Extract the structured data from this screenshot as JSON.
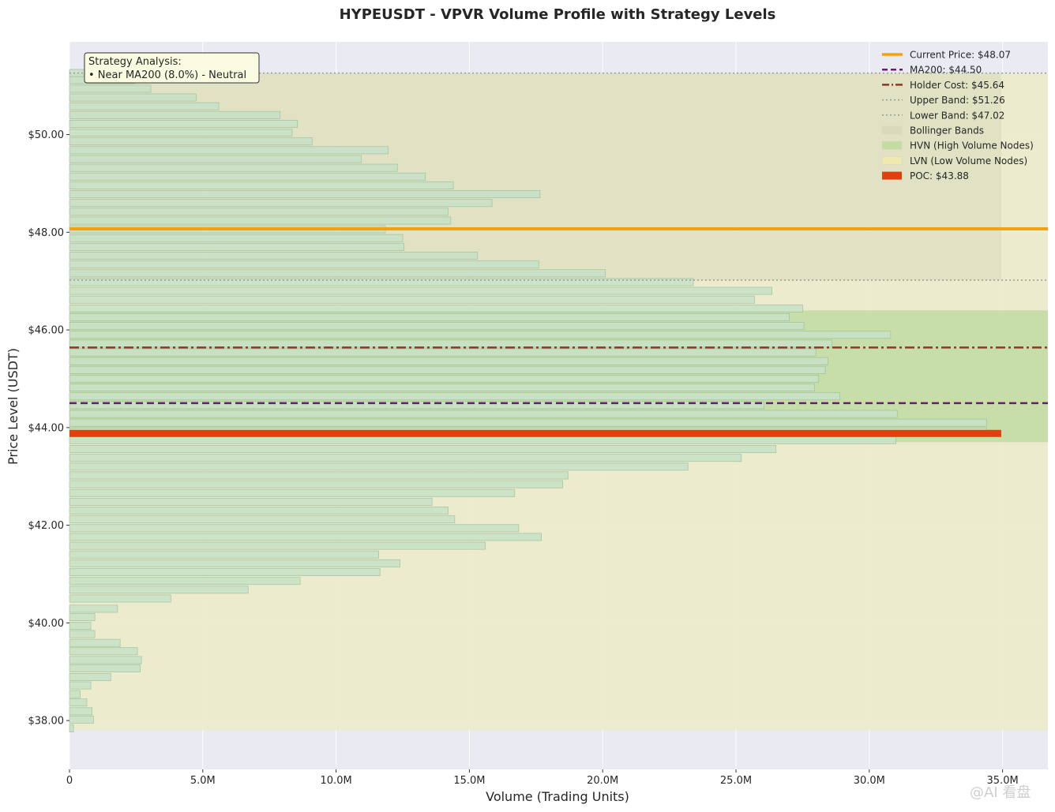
{
  "chart_data": {
    "type": "bar",
    "orientation": "horizontal",
    "title": "HYPEUSDT - VPVR Volume Profile with Strategy Levels",
    "xlabel": "Volume (Trading Units)",
    "ylabel": "Price Level (USDT)",
    "xlim": [
      0,
      36.7
    ],
    "ylim": [
      37.0,
      51.9
    ],
    "x_unit": "M",
    "x_ticks": [
      0,
      5,
      10,
      15,
      20,
      25,
      30,
      35
    ],
    "x_tick_labels": [
      "0",
      "5.0M",
      "10.0M",
      "15.0M",
      "20.0M",
      "25.0M",
      "30.0M",
      "35.0M"
    ],
    "y_ticks": [
      38,
      40,
      42,
      44,
      46,
      48,
      50
    ],
    "y_tick_labels": [
      "$38.00",
      "$40.00",
      "$42.00",
      "$44.00",
      "$46.00",
      "$48.00",
      "$50.00"
    ],
    "bin_height": 0.148,
    "bins": [
      {
        "price": 37.84,
        "volume": 0.15
      },
      {
        "price": 38.02,
        "volume": 0.9
      },
      {
        "price": 38.19,
        "volume": 0.85
      },
      {
        "price": 38.37,
        "volume": 0.65
      },
      {
        "price": 38.54,
        "volume": 0.4
      },
      {
        "price": 38.72,
        "volume": 0.8
      },
      {
        "price": 38.89,
        "volume": 1.55
      },
      {
        "price": 39.07,
        "volume": 2.65
      },
      {
        "price": 39.24,
        "volume": 2.7
      },
      {
        "price": 39.42,
        "volume": 2.55
      },
      {
        "price": 39.59,
        "volume": 1.9
      },
      {
        "price": 39.77,
        "volume": 0.95
      },
      {
        "price": 39.94,
        "volume": 0.8
      },
      {
        "price": 40.12,
        "volume": 0.95
      },
      {
        "price": 40.29,
        "volume": 1.8
      },
      {
        "price": 40.5,
        "volume": 3.8
      },
      {
        "price": 40.68,
        "volume": 6.7
      },
      {
        "price": 40.86,
        "volume": 8.65
      },
      {
        "price": 41.04,
        "volume": 11.65
      },
      {
        "price": 41.22,
        "volume": 12.4
      },
      {
        "price": 41.4,
        "volume": 11.6
      },
      {
        "price": 41.58,
        "volume": 15.6
      },
      {
        "price": 41.76,
        "volume": 17.7
      },
      {
        "price": 41.94,
        "volume": 16.85
      },
      {
        "price": 42.12,
        "volume": 14.45
      },
      {
        "price": 42.3,
        "volume": 14.2
      },
      {
        "price": 42.48,
        "volume": 13.6
      },
      {
        "price": 42.66,
        "volume": 16.7
      },
      {
        "price": 42.84,
        "volume": 18.5
      },
      {
        "price": 43.02,
        "volume": 18.7
      },
      {
        "price": 43.2,
        "volume": 23.2
      },
      {
        "price": 43.38,
        "volume": 25.2
      },
      {
        "price": 43.56,
        "volume": 26.5
      },
      {
        "price": 43.74,
        "volume": 31.0
      },
      {
        "price": 43.92,
        "volume": 34.4
      },
      {
        "price": 44.1,
        "volume": 34.4
      },
      {
        "price": 44.28,
        "volume": 31.05
      },
      {
        "price": 44.46,
        "volume": 26.05
      },
      {
        "price": 44.64,
        "volume": 28.9
      },
      {
        "price": 44.82,
        "volume": 27.95
      },
      {
        "price": 45.0,
        "volume": 28.1
      },
      {
        "price": 45.18,
        "volume": 28.35
      },
      {
        "price": 45.36,
        "volume": 28.45
      },
      {
        "price": 45.54,
        "volume": 28.0
      },
      {
        "price": 45.72,
        "volume": 28.6
      },
      {
        "price": 45.9,
        "volume": 30.8
      },
      {
        "price": 46.08,
        "volume": 27.55
      },
      {
        "price": 46.26,
        "volume": 27.0
      },
      {
        "price": 46.44,
        "volume": 27.5
      },
      {
        "price": 46.62,
        "volume": 25.7
      },
      {
        "price": 46.8,
        "volume": 26.35
      },
      {
        "price": 46.98,
        "volume": 23.4
      },
      {
        "price": 47.16,
        "volume": 20.1
      },
      {
        "price": 47.34,
        "volume": 17.6
      },
      {
        "price": 47.52,
        "volume": 15.3
      },
      {
        "price": 47.7,
        "volume": 12.55
      },
      {
        "price": 47.88,
        "volume": 12.5
      },
      {
        "price": 48.06,
        "volume": 11.85
      },
      {
        "price": 48.24,
        "volume": 14.3
      },
      {
        "price": 48.42,
        "volume": 14.2
      },
      {
        "price": 48.6,
        "volume": 15.85
      },
      {
        "price": 48.78,
        "volume": 17.65
      },
      {
        "price": 48.96,
        "volume": 14.4
      },
      {
        "price": 49.14,
        "volume": 13.35
      },
      {
        "price": 49.32,
        "volume": 12.3
      },
      {
        "price": 49.5,
        "volume": 10.95
      },
      {
        "price": 49.68,
        "volume": 11.95
      },
      {
        "price": 49.86,
        "volume": 9.1
      },
      {
        "price": 50.04,
        "volume": 8.35
      },
      {
        "price": 50.22,
        "volume": 8.55
      },
      {
        "price": 50.4,
        "volume": 7.9
      },
      {
        "price": 50.58,
        "volume": 5.6
      },
      {
        "price": 50.76,
        "volume": 4.75
      },
      {
        "price": 50.94,
        "volume": 3.05
      },
      {
        "price": 51.12,
        "volume": 2.45
      },
      {
        "price": 51.26,
        "volume": 0.6
      }
    ],
    "levels": {
      "current_price": {
        "value": 48.07,
        "label": "Current Price: $48.07",
        "color": "#f4a10e"
      },
      "ma200": {
        "value": 44.5,
        "label": "MA200: $44.50",
        "color": "#6a1a7a"
      },
      "holder_cost": {
        "value": 45.64,
        "label": "Holder Cost: $45.64",
        "color": "#8b3a2a"
      },
      "upper_band": {
        "value": 51.26,
        "label": "Upper Band: $51.26",
        "color": "#999999"
      },
      "lower_band": {
        "value": 47.02,
        "label": "Lower Band: $47.02",
        "color": "#999999"
      },
      "poc": {
        "value": 43.88,
        "volume": 34.95,
        "label": "POC: $43.88",
        "color": "#e0400f"
      }
    },
    "zones": {
      "bollinger": {
        "from": 47.02,
        "to": 51.26,
        "label": "Bollinger Bands",
        "color": "#d9d9bd"
      },
      "hvn": {
        "from": 43.7,
        "to": 46.4,
        "label": "HVN (High Volume Nodes)",
        "color": "#c2dca2"
      },
      "lvn": {
        "from": 37.8,
        "to": 51.26,
        "label": "LVN (Low Volume Nodes)",
        "color": "#ecebc9"
      }
    },
    "bar_color": "#c8e2c8",
    "bar_edge": "#9cc09c",
    "grid": true,
    "legend_position": "top-right",
    "annotation": {
      "line1": "Strategy Analysis:",
      "line2": "• Near MA200 (8.0%) - Neutral"
    }
  },
  "watermark": "@AI 看盘"
}
